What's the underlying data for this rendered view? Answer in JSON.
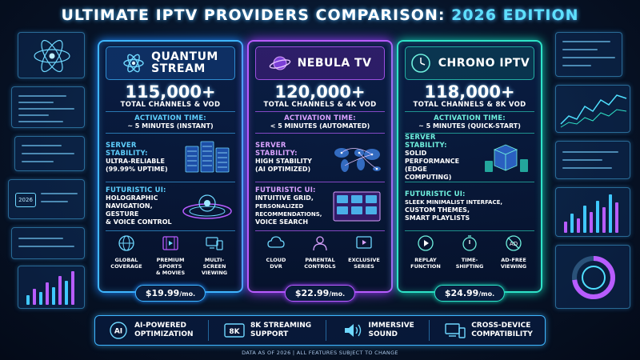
{
  "page": {
    "title_main": "ULTIMATE IPTV PROVIDERS COMPARISON:",
    "title_year": "2026 EDITION",
    "footnote": "DATA AS OF 2026 | ALL FEATURES SUBJECT TO CHANGE"
  },
  "cards": [
    {
      "name_line1": "QUANTUM",
      "name_line2": "STREAM",
      "logo_icon": "atom-icon",
      "channels": "115,000+",
      "channels_sub": "TOTAL CHANNELS & VOD",
      "activation_label": "ACTIVATION TIME:",
      "activation_value": "~ 5 MINUTES (INSTANT)",
      "stability_label": "SERVER STABILITY:",
      "stability_value_1": "ULTRA-RELIABLE",
      "stability_value_2": "(99.99% UPTIME)",
      "ui_label": "FUTURISTIC UI:",
      "ui_value_1": "HOLOGRAPHIC",
      "ui_value_2": "NAVIGATION, GESTURE",
      "ui_value_3": "& VOICE CONTROL",
      "features": [
        {
          "l1": "GLOBAL",
          "l2": "COVERAGE",
          "l3": "",
          "icon": "globe-icon"
        },
        {
          "l1": "PREMIUM",
          "l2": "SPORTS",
          "l3": "& MOVIES",
          "icon": "film-icon"
        },
        {
          "l1": "MULTI-SCREEN",
          "l2": "VIEWING",
          "l3": "",
          "icon": "multi-screen-icon"
        }
      ],
      "price": "$19.99",
      "per": "/mo.",
      "accent": "#3fb6ff"
    },
    {
      "name_line1": "NEBULA TV",
      "name_line2": "",
      "logo_icon": "planet-icon",
      "channels": "120,000+",
      "channels_sub": "TOTAL CHANNELS & 4K VOD",
      "activation_label": "ACTIVATION TIME:",
      "activation_value": "< 5 MINUTES (AUTOMATED)",
      "stability_label": "SERVER STABILITY:",
      "stability_value_1": "HIGH STABILITY",
      "stability_value_2": "(AI OPTIMIZED)",
      "ui_label": "FUTURISTIC UI:",
      "ui_value_1": "INTUITIVE GRID,",
      "ui_value_2": "PERSONALIZED RECOMMENDATIONS,",
      "ui_value_3": "VOICE SEARCH",
      "features": [
        {
          "l1": "CLOUD",
          "l2": "DVR",
          "l3": "",
          "icon": "cloud-icon"
        },
        {
          "l1": "PARENTAL",
          "l2": "CONTROLS",
          "l3": "",
          "icon": "parental-icon"
        },
        {
          "l1": "EXCLUSIVE",
          "l2": "SERIES",
          "l3": "",
          "icon": "play-screen-icon"
        }
      ],
      "price": "$22.99",
      "per": "/mo.",
      "accent": "#b85cff"
    },
    {
      "name_line1": "CHRONO IPTV",
      "name_line2": "",
      "logo_icon": "clock-icon",
      "channels": "118,000+",
      "channels_sub": "TOTAL CHANNELS & 8K VOD",
      "activation_label": "ACTIVATION TIME:",
      "activation_value": "~ 5 MINUTES (QUICK-START)",
      "stability_label": "SERVER STABILITY:",
      "stability_value_1": "SOLID PERFORMANCE",
      "stability_value_2": "(EDGE COMPUTING)",
      "ui_label": "FUTURISTIC UI:",
      "ui_value_1": "SLEEK MINIMALIST INTERFACE,",
      "ui_value_2": "CUSTOM THEMES,",
      "ui_value_3": "SMART PLAYLISTS",
      "features": [
        {
          "l1": "REPLAY",
          "l2": "FUNCTION",
          "l3": "",
          "icon": "replay-icon"
        },
        {
          "l1": "TIME-",
          "l2": "SHIFTING",
          "l3": "",
          "icon": "timer-icon"
        },
        {
          "l1": "AD-FREE",
          "l2": "VIEWING",
          "l3": "",
          "icon": "no-ads-icon"
        }
      ],
      "price": "$24.99",
      "per": "/mo.",
      "accent": "#2fe3c8"
    }
  ],
  "bottom_bar": [
    {
      "l1": "AI-POWERED",
      "l2": "OPTIMIZATION",
      "icon": "ai-chip-icon",
      "badge": "AI"
    },
    {
      "l1": "8K STREAMING",
      "l2": "SUPPORT",
      "icon": "8k-icon",
      "badge": "8K"
    },
    {
      "l1": "IMMERSIVE",
      "l2": "SOUND",
      "icon": "speaker-icon",
      "badge": ""
    },
    {
      "l1": "CROSS-DEVICE",
      "l2": "COMPATIBILITY",
      "icon": "devices-icon",
      "badge": ""
    }
  ]
}
